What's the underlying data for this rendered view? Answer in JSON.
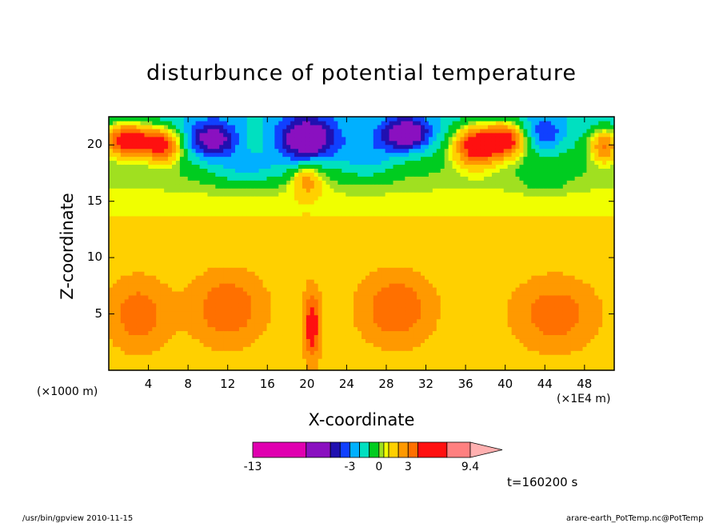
{
  "chart_data": {
    "type": "heatmap",
    "title": "disturbunce of potential temperature",
    "xlabel": "X-coordinate",
    "ylabel": "Z-coordinate",
    "x_unit": "(×1000 m)",
    "x_unit_secondary": "(×1E4 m)",
    "x_ticks": [
      4,
      8,
      12,
      16,
      20,
      24,
      28,
      32,
      36,
      40,
      44,
      48
    ],
    "y_ticks": [
      5,
      10,
      15,
      20
    ],
    "xlim": [
      0,
      51
    ],
    "ylim": [
      0,
      22.5
    ],
    "colorbar": {
      "min_label": "-13",
      "labels": [
        "-13",
        "-3",
        "0",
        "3",
        "9.4"
      ],
      "label_values": [
        -13,
        -3,
        0,
        3,
        9.4
      ],
      "min": -13,
      "max": 9.4,
      "bands": [
        {
          "from": -13,
          "to": -7.5,
          "color": "#e000b0"
        },
        {
          "from": -7.5,
          "to": -5,
          "color": "#8a10c0"
        },
        {
          "from": -5,
          "to": -4,
          "color": "#2010b0"
        },
        {
          "from": -4,
          "to": -3,
          "color": "#1040ff"
        },
        {
          "from": -3,
          "to": -2,
          "color": "#00b0ff"
        },
        {
          "from": -2,
          "to": -1,
          "color": "#00e0c0"
        },
        {
          "from": -1,
          "to": 0,
          "color": "#00cc20"
        },
        {
          "from": 0,
          "to": 0.5,
          "color": "#a0e020"
        },
        {
          "from": 0.5,
          "to": 1,
          "color": "#f0ff00"
        },
        {
          "from": 1,
          "to": 2,
          "color": "#ffd000"
        },
        {
          "from": 2,
          "to": 3,
          "color": "#ff9900"
        },
        {
          "from": 3,
          "to": 4,
          "color": "#ff7000"
        },
        {
          "from": 4,
          "to": 7,
          "color": "#ff1010"
        },
        {
          "from": 7,
          "to": 9.4,
          "color": "#ff8080"
        }
      ],
      "extend_color": "#ffb0b0"
    },
    "features": [
      {
        "x": 2,
        "z": 20.5,
        "value": 6.5,
        "sx": 2.5,
        "sz": 1.5
      },
      {
        "x": 5.5,
        "z": 20,
        "value": 5,
        "sx": 1.8,
        "sz": 1.5
      },
      {
        "x": 10.5,
        "z": 20.5,
        "value": -5,
        "sx": 2.5,
        "sz": 1.6
      },
      {
        "x": 20,
        "z": 20.5,
        "value": -6,
        "sx": 3,
        "sz": 2
      },
      {
        "x": 30,
        "z": 21,
        "value": -5.5,
        "sx": 2.5,
        "sz": 1.5
      },
      {
        "x": 37,
        "z": 20,
        "value": 6,
        "sx": 2.2,
        "sz": 1.8
      },
      {
        "x": 40,
        "z": 20.5,
        "value": 6,
        "sx": 2,
        "sz": 1.5
      },
      {
        "x": 50,
        "z": 20,
        "value": 4,
        "sx": 1.5,
        "sz": 1.5
      },
      {
        "x": 44,
        "z": 21,
        "value": -2.5,
        "sx": 2,
        "sz": 1.5
      },
      {
        "x": 14,
        "z": 18,
        "value": -2,
        "sx": 4,
        "sz": 1.6
      },
      {
        "x": 26,
        "z": 19,
        "value": -2,
        "sx": 3,
        "sz": 2
      },
      {
        "x": 44,
        "z": 17,
        "value": -1,
        "sx": 2,
        "sz": 1.2
      },
      {
        "x": 20,
        "z": 17,
        "value": 2.5,
        "sx": 1.5,
        "sz": 1.5
      },
      {
        "x": 12,
        "z": 5.5,
        "value": 2.5,
        "sx": 3.5,
        "sz": 3
      },
      {
        "x": 29,
        "z": 5.5,
        "value": 2.5,
        "sx": 3.5,
        "sz": 3
      },
      {
        "x": 3,
        "z": 5,
        "value": 2.2,
        "sx": 3,
        "sz": 3
      },
      {
        "x": 45,
        "z": 5,
        "value": 2.2,
        "sx": 4,
        "sz": 3
      },
      {
        "x": 20.5,
        "z": 4,
        "value": 3.5,
        "sx": 0.8,
        "sz": 3
      }
    ],
    "time_label": "t=160200 s",
    "footer_left": "/usr/bin/gpview   2010-11-15",
    "footer_right": "arare-earth_PotTemp.nc@PotTemp"
  }
}
